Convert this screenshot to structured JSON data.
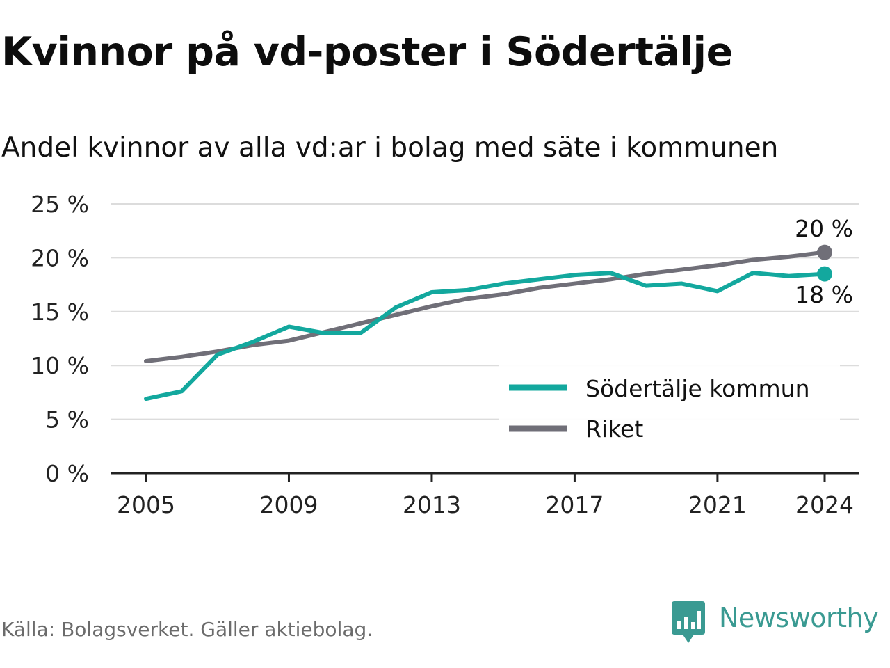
{
  "title": "Kvinnor på vd-poster i Södertälje",
  "subtitle": "Andel kvinnor av alla vd:ar i bolag med säte i kommunen",
  "source": "Källa: Bolagsverket. Gäller aktiebolag.",
  "brand": {
    "name": "Newsworthy",
    "icon": "newsworthy-logo-icon",
    "color": "#3a9a92"
  },
  "chart_data": {
    "type": "line",
    "x": [
      2005,
      2006,
      2007,
      2008,
      2009,
      2010,
      2011,
      2012,
      2013,
      2014,
      2015,
      2016,
      2017,
      2018,
      2019,
      2020,
      2021,
      2022,
      2023,
      2024
    ],
    "series": [
      {
        "name": "Södertälje kommun",
        "color": "#13a89e",
        "values": [
          6.9,
          7.6,
          11.0,
          12.2,
          13.6,
          13.0,
          13.0,
          15.4,
          16.8,
          17.0,
          17.6,
          18.0,
          18.4,
          18.6,
          17.4,
          17.6,
          16.9,
          18.6,
          18.3,
          18.5
        ],
        "end_label": "18 %"
      },
      {
        "name": "Riket",
        "color": "#706f78",
        "values": [
          10.4,
          10.8,
          11.3,
          11.9,
          12.3,
          13.1,
          13.9,
          14.7,
          15.5,
          16.2,
          16.6,
          17.2,
          17.6,
          18.0,
          18.5,
          18.9,
          19.3,
          19.8,
          20.1,
          20.5
        ],
        "end_label": "20 %"
      }
    ],
    "ylim": [
      0,
      25
    ],
    "yticks": [
      0,
      5,
      10,
      15,
      20,
      25
    ],
    "ytick_labels": [
      "0 %",
      "5 %",
      "10 %",
      "15 %",
      "20 %",
      "25 %"
    ],
    "xticks": [
      2005,
      2009,
      2013,
      2017,
      2021,
      2024
    ],
    "xtick_labels": [
      "2005",
      "2009",
      "2013",
      "2017",
      "2021",
      "2024"
    ],
    "grid": "horizontal",
    "legend_position": "bottom-right",
    "xlabel": "",
    "ylabel": ""
  }
}
